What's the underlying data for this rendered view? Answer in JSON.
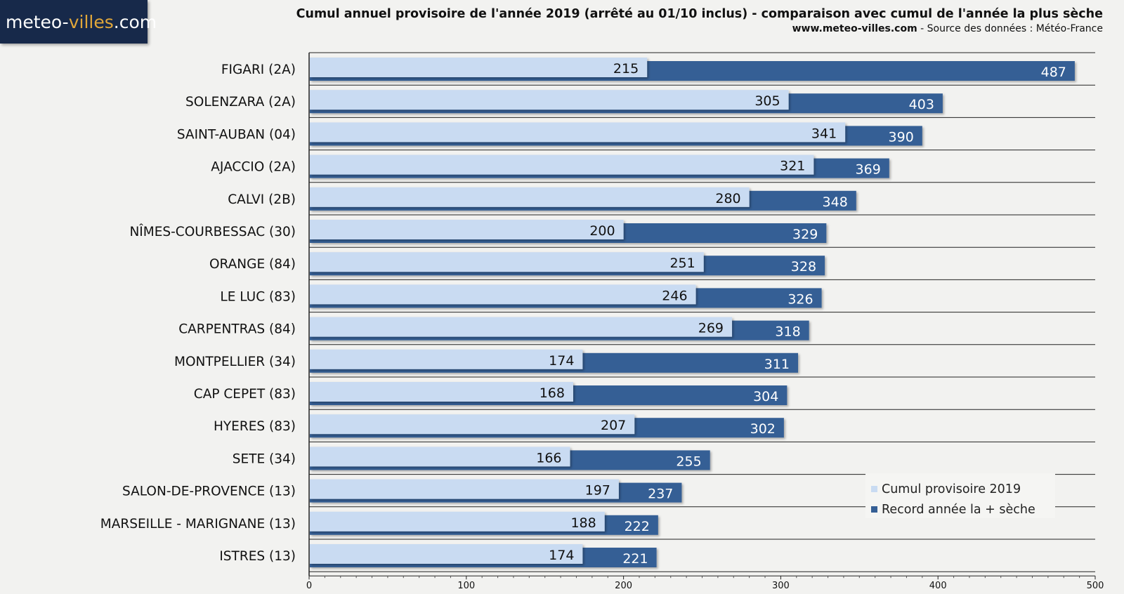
{
  "logo": {
    "part1": "meteo-",
    "part2": "villes",
    "part3": ".com"
  },
  "header": {
    "title": "Cumul annuel provisoire de l'année 2019 (arrêté au 01/10 inclus) - comparaison avec cumul de l'année la plus sèche",
    "site": "www.meteo-villes.com",
    "source": " - Source des données : Météo-France"
  },
  "legend": {
    "current": "Cumul provisoire 2019",
    "record": "Record année la + sèche"
  },
  "colors": {
    "current": "#c9dbf2",
    "record": "#355f95",
    "grid": "#222222"
  },
  "chart_data": {
    "type": "bar",
    "orientation": "horizontal",
    "categories": [
      "FIGARI (2A)",
      "SOLENZARA (2A)",
      "SAINT-AUBAN (04)",
      "AJACCIO (2A)",
      "CALVI (2B)",
      "NÎMES-COURBESSAC (30)",
      "ORANGE (84)",
      "LE LUC (83)",
      "CARPENTRAS (84)",
      "MONTPELLIER (34)",
      "CAP CEPET (83)",
      "HYERES (83)",
      "SETE (34)",
      "SALON-DE-PROVENCE (13)",
      "MARSEILLE - MARIGNANE (13)",
      "ISTRES (13)"
    ],
    "series": [
      {
        "name": "Cumul provisoire 2019",
        "values": [
          215,
          305,
          341,
          321,
          280,
          200,
          251,
          246,
          269,
          174,
          168,
          207,
          166,
          197,
          188,
          174
        ]
      },
      {
        "name": "Record année la + sèche",
        "values": [
          487,
          403,
          390,
          369,
          348,
          329,
          328,
          326,
          318,
          311,
          304,
          302,
          255,
          237,
          222,
          221
        ]
      }
    ],
    "xlim": [
      0,
      500
    ],
    "xticks": [
      0,
      100,
      200,
      300,
      400,
      500
    ],
    "xlabel": "",
    "ylabel": ""
  }
}
